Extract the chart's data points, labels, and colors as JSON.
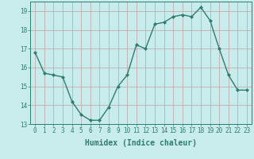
{
  "x": [
    0,
    1,
    2,
    3,
    4,
    5,
    6,
    7,
    8,
    9,
    10,
    11,
    12,
    13,
    14,
    15,
    16,
    17,
    18,
    19,
    20,
    21,
    22,
    23
  ],
  "y": [
    16.8,
    15.7,
    15.6,
    15.5,
    14.2,
    13.5,
    13.2,
    13.2,
    13.9,
    15.0,
    15.6,
    17.2,
    17.0,
    18.3,
    18.4,
    18.7,
    18.8,
    18.7,
    19.2,
    18.5,
    17.0,
    15.6,
    14.8,
    14.8
  ],
  "line_color": "#2E7D6E",
  "marker": "D",
  "marker_size": 2.0,
  "bg_color": "#C8EBEB",
  "grid_color": "#C0A0A0",
  "xlabel": "Humidex (Indice chaleur)",
  "ylim": [
    13,
    19.5
  ],
  "yticks": [
    13,
    14,
    15,
    16,
    17,
    18,
    19
  ],
  "xticks": [
    0,
    1,
    2,
    3,
    4,
    5,
    6,
    7,
    8,
    9,
    10,
    11,
    12,
    13,
    14,
    15,
    16,
    17,
    18,
    19,
    20,
    21,
    22,
    23
  ],
  "tick_label_fontsize": 5.5,
  "xlabel_fontsize": 7.0,
  "line_width": 1.0
}
